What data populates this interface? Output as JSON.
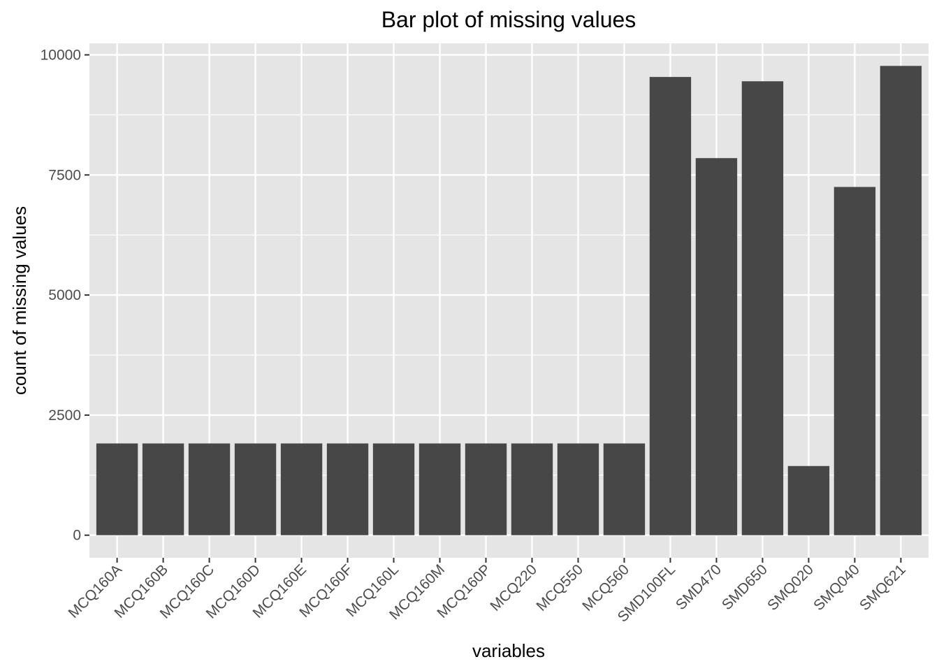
{
  "chart_data": {
    "type": "bar",
    "title": "Bar plot of missing values",
    "xlabel": "variables",
    "ylabel": "count of missing values",
    "categories": [
      "MCQ160A",
      "MCQ160B",
      "MCQ160C",
      "MCQ160D",
      "MCQ160E",
      "MCQ160F",
      "MCQ160L",
      "MCQ160M",
      "MCQ160P",
      "MCQ220",
      "MCQ550",
      "MCQ560",
      "SMD100FL",
      "SMD470",
      "SMD650",
      "SMQ020",
      "SMQ040",
      "SMQ621"
    ],
    "values": [
      1910,
      1910,
      1910,
      1910,
      1910,
      1910,
      1910,
      1910,
      1910,
      1910,
      1910,
      1910,
      9540,
      7850,
      9450,
      1440,
      7250,
      9770
    ],
    "ylim": [
      -470,
      10240
    ],
    "yticks": [
      0,
      2500,
      5000,
      7500,
      10000
    ],
    "yticks_minor": [
      1250,
      3750,
      6250,
      8750
    ],
    "grid": true,
    "colors": {
      "panel": "#e5e5e5",
      "grid": "#ffffff",
      "bar": "#474747",
      "tick": "#333333",
      "tick_text": "#4d4d4d"
    }
  }
}
